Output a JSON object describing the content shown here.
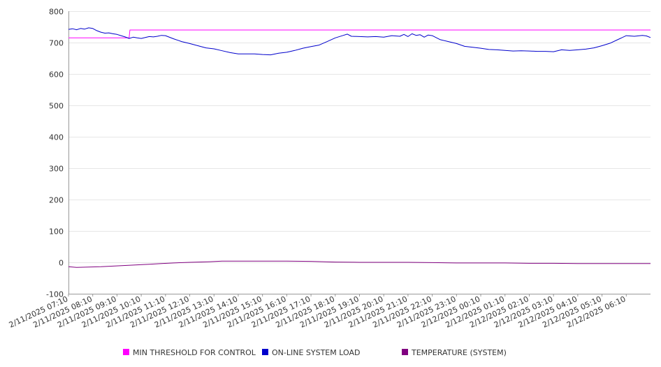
{
  "chart_data": {
    "type": "line",
    "title": "",
    "xlabel": "",
    "ylabel": "",
    "ylim": [
      -100,
      800
    ],
    "yticks": [
      -100,
      0,
      100,
      200,
      300,
      400,
      500,
      600,
      700,
      800
    ],
    "grid": "horizontal",
    "legend_position": "bottom",
    "x_labels": [
      "2/11/2025 07:10",
      "2/11/2025 08:10",
      "2/11/2025 09:10",
      "2/11/2025 10:10",
      "2/11/2025 11:10",
      "2/11/2025 12:10",
      "2/11/2025 13:10",
      "2/11/2025 14:10",
      "2/11/2025 15:10",
      "2/11/2025 16:10",
      "2/11/2025 17:10",
      "2/11/2025 18:10",
      "2/11/2025 19:10",
      "2/11/2025 20:10",
      "2/11/2025 21:10",
      "2/11/2025 22:10",
      "2/11/2025 23:10",
      "2/12/2025 00:10",
      "2/12/2025 01:10",
      "2/12/2025 02:10",
      "2/12/2025 03:10",
      "2/12/2025 04:10",
      "2/12/2025 05:10",
      "2/12/2025 06:10"
    ],
    "x_range": [
      "2/11/2025 07:10",
      "2/12/2025 07:10"
    ],
    "series": [
      {
        "name": "MIN THRESHOLD FOR CONTROL",
        "color": "#ff00ff",
        "points": [
          [
            "2/11/2025 07:10",
            715
          ],
          [
            "2/11/2025 09:40",
            715
          ],
          [
            "2/11/2025 09:42",
            740
          ],
          [
            "2/12/2025 07:10",
            740
          ]
        ]
      },
      {
        "name": "ON-LINE SYSTEM LOAD",
        "color": "#0000cc",
        "points": [
          [
            "2/11/2025 07:10",
            742
          ],
          [
            "2/11/2025 07:20",
            744
          ],
          [
            "2/11/2025 07:30",
            741
          ],
          [
            "2/11/2025 07:40",
            745
          ],
          [
            "2/11/2025 07:50",
            743
          ],
          [
            "2/11/2025 08:00",
            747
          ],
          [
            "2/11/2025 08:10",
            745
          ],
          [
            "2/11/2025 08:20",
            738
          ],
          [
            "2/11/2025 08:30",
            733
          ],
          [
            "2/11/2025 08:40",
            730
          ],
          [
            "2/11/2025 08:50",
            731
          ],
          [
            "2/11/2025 09:00",
            728
          ],
          [
            "2/11/2025 09:10",
            726
          ],
          [
            "2/11/2025 09:20",
            722
          ],
          [
            "2/11/2025 09:30",
            718
          ],
          [
            "2/11/2025 09:40",
            713
          ],
          [
            "2/11/2025 09:50",
            717
          ],
          [
            "2/11/2025 10:00",
            715
          ],
          [
            "2/11/2025 10:10",
            713
          ],
          [
            "2/11/2025 10:20",
            716
          ],
          [
            "2/11/2025 10:30",
            719
          ],
          [
            "2/11/2025 10:40",
            718
          ],
          [
            "2/11/2025 10:50",
            720
          ],
          [
            "2/11/2025 11:00",
            723
          ],
          [
            "2/11/2025 11:10",
            722
          ],
          [
            "2/11/2025 11:30",
            712
          ],
          [
            "2/11/2025 11:50",
            703
          ],
          [
            "2/11/2025 12:10",
            697
          ],
          [
            "2/11/2025 12:30",
            690
          ],
          [
            "2/11/2025 12:50",
            683
          ],
          [
            "2/11/2025 13:10",
            680
          ],
          [
            "2/11/2025 13:30",
            674
          ],
          [
            "2/11/2025 13:50",
            668
          ],
          [
            "2/11/2025 14:10",
            664
          ],
          [
            "2/11/2025 14:30",
            664
          ],
          [
            "2/11/2025 14:50",
            664
          ],
          [
            "2/11/2025 15:10",
            662
          ],
          [
            "2/11/2025 15:30",
            661
          ],
          [
            "2/11/2025 15:50",
            666
          ],
          [
            "2/11/2025 16:10",
            669
          ],
          [
            "2/11/2025 16:30",
            675
          ],
          [
            "2/11/2025 16:50",
            682
          ],
          [
            "2/11/2025 17:10",
            687
          ],
          [
            "2/11/2025 17:30",
            692
          ],
          [
            "2/11/2025 17:50",
            703
          ],
          [
            "2/11/2025 18:10",
            715
          ],
          [
            "2/11/2025 18:30",
            723
          ],
          [
            "2/11/2025 18:40",
            727
          ],
          [
            "2/11/2025 18:50",
            720
          ],
          [
            "2/11/2025 19:10",
            719
          ],
          [
            "2/11/2025 19:30",
            718
          ],
          [
            "2/11/2025 19:50",
            719
          ],
          [
            "2/11/2025 20:10",
            717
          ],
          [
            "2/11/2025 20:30",
            722
          ],
          [
            "2/11/2025 20:50",
            720
          ],
          [
            "2/11/2025 21:00",
            726
          ],
          [
            "2/11/2025 21:10",
            719
          ],
          [
            "2/11/2025 21:20",
            728
          ],
          [
            "2/11/2025 21:30",
            723
          ],
          [
            "2/11/2025 21:40",
            725
          ],
          [
            "2/11/2025 21:50",
            717
          ],
          [
            "2/11/2025 22:00",
            724
          ],
          [
            "2/11/2025 22:10",
            722
          ],
          [
            "2/11/2025 22:30",
            709
          ],
          [
            "2/11/2025 22:50",
            703
          ],
          [
            "2/11/2025 23:10",
            697
          ],
          [
            "2/11/2025 23:30",
            688
          ],
          [
            "2/11/2025 23:50",
            685
          ],
          [
            "2/12/2025 00:10",
            682
          ],
          [
            "2/12/2025 00:30",
            678
          ],
          [
            "2/12/2025 00:50",
            677
          ],
          [
            "2/12/2025 01:10",
            675
          ],
          [
            "2/12/2025 01:30",
            673
          ],
          [
            "2/12/2025 01:50",
            674
          ],
          [
            "2/12/2025 02:10",
            673
          ],
          [
            "2/12/2025 02:30",
            672
          ],
          [
            "2/12/2025 02:50",
            672
          ],
          [
            "2/12/2025 03:10",
            671
          ],
          [
            "2/12/2025 03:30",
            677
          ],
          [
            "2/12/2025 03:50",
            675
          ],
          [
            "2/12/2025 04:10",
            677
          ],
          [
            "2/12/2025 04:30",
            679
          ],
          [
            "2/12/2025 04:50",
            683
          ],
          [
            "2/12/2025 05:10",
            690
          ],
          [
            "2/12/2025 05:30",
            698
          ],
          [
            "2/12/2025 05:50",
            710
          ],
          [
            "2/12/2025 06:10",
            722
          ],
          [
            "2/12/2025 06:30",
            720
          ],
          [
            "2/12/2025 06:50",
            723
          ],
          [
            "2/12/2025 07:00",
            721
          ],
          [
            "2/12/2025 07:10",
            716
          ]
        ]
      },
      {
        "name": "TEMPERATURE (SYSTEM)",
        "color": "#800080",
        "points": [
          [
            "2/11/2025 07:10",
            -14
          ],
          [
            "2/11/2025 07:30",
            -16
          ],
          [
            "2/11/2025 08:00",
            -15
          ],
          [
            "2/11/2025 08:30",
            -14
          ],
          [
            "2/11/2025 09:00",
            -12
          ],
          [
            "2/11/2025 09:30",
            -10
          ],
          [
            "2/11/2025 10:00",
            -8
          ],
          [
            "2/11/2025 10:30",
            -6
          ],
          [
            "2/11/2025 11:00",
            -4
          ],
          [
            "2/11/2025 11:30",
            -2
          ],
          [
            "2/11/2025 12:10",
            0
          ],
          [
            "2/11/2025 13:00",
            2
          ],
          [
            "2/11/2025 13:30",
            4
          ],
          [
            "2/11/2025 14:10",
            4
          ],
          [
            "2/11/2025 15:10",
            4
          ],
          [
            "2/11/2025 16:10",
            4
          ],
          [
            "2/11/2025 17:10",
            3
          ],
          [
            "2/11/2025 18:10",
            1
          ],
          [
            "2/11/2025 19:10",
            0
          ],
          [
            "2/11/2025 20:10",
            0
          ],
          [
            "2/11/2025 21:10",
            0
          ],
          [
            "2/11/2025 22:10",
            -1
          ],
          [
            "2/11/2025 23:10",
            -2
          ],
          [
            "2/12/2025 00:10",
            -2
          ],
          [
            "2/12/2025 01:10",
            -2
          ],
          [
            "2/12/2025 02:10",
            -3
          ],
          [
            "2/12/2025 03:10",
            -3
          ],
          [
            "2/12/2025 04:10",
            -4
          ],
          [
            "2/12/2025 05:10",
            -4
          ],
          [
            "2/12/2025 06:10",
            -4
          ],
          [
            "2/12/2025 07:10",
            -4
          ]
        ]
      }
    ]
  },
  "legend": [
    {
      "label": "MIN THRESHOLD FOR CONTROL",
      "color": "#ff00ff"
    },
    {
      "label": "ON-LINE SYSTEM LOAD",
      "color": "#0000cc"
    },
    {
      "label": "TEMPERATURE (SYSTEM)",
      "color": "#800080"
    }
  ],
  "colors": {
    "grid": "#e6e6e6",
    "axis": "#999999"
  }
}
